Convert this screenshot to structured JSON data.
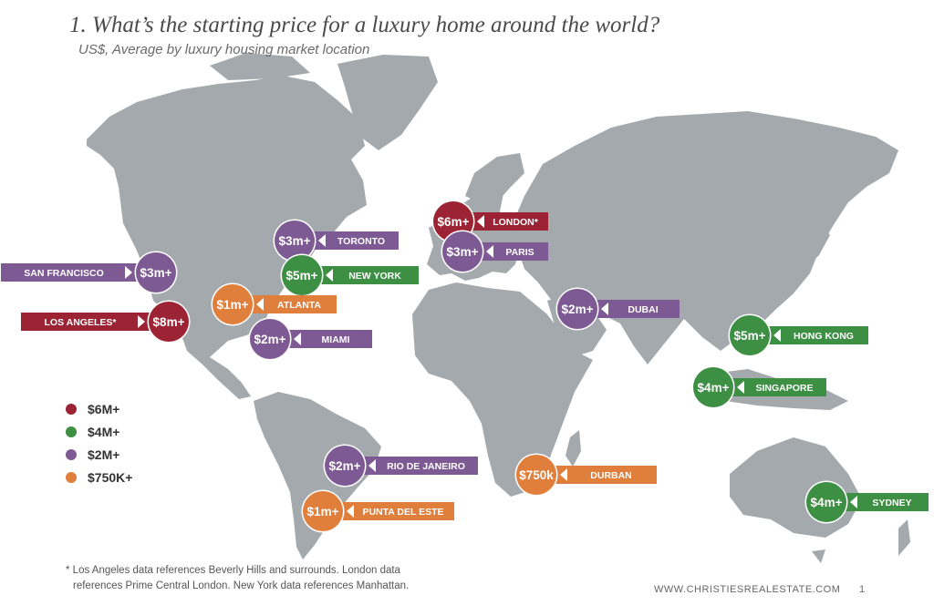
{
  "title": "1. What’s the starting price for a luxury home around the world?",
  "subtitle": "US$, Average by luxury housing market location",
  "colors": {
    "tier6": "#9c2333",
    "tier4": "#3d8f43",
    "tier2": "#7d5a93",
    "tier750": "#e07e3c",
    "land": "#a3a9ac"
  },
  "legend": [
    {
      "label": "$6M+",
      "tier": "tier6"
    },
    {
      "label": "$4M+",
      "tier": "tier4"
    },
    {
      "label": "$2M+",
      "tier": "tier2"
    },
    {
      "label": "$750K+",
      "tier": "tier750"
    }
  ],
  "markets": [
    {
      "id": "london",
      "city": "LONDON*",
      "price": "$6m+",
      "tier": "tier6"
    },
    {
      "id": "paris",
      "city": "PARIS",
      "price": "$3m+",
      "tier": "tier2"
    },
    {
      "id": "toronto",
      "city": "TORONTO",
      "price": "$3m+",
      "tier": "tier2"
    },
    {
      "id": "new-york",
      "city": "NEW YORK",
      "price": "$5m+",
      "tier": "tier4"
    },
    {
      "id": "san-francisco",
      "city": "SAN FRANCISCO",
      "price": "$3m+",
      "tier": "tier2"
    },
    {
      "id": "atlanta",
      "city": "ATLANTA",
      "price": "$1m+",
      "tier": "tier750"
    },
    {
      "id": "los-angeles",
      "city": "LOS ANGELES*",
      "price": "$8m+",
      "tier": "tier6"
    },
    {
      "id": "miami",
      "city": "MIAMI",
      "price": "$2m+",
      "tier": "tier2"
    },
    {
      "id": "dubai",
      "city": "DUBAI",
      "price": "$2m+",
      "tier": "tier2"
    },
    {
      "id": "hong-kong",
      "city": "HONG KONG",
      "price": "$5m+",
      "tier": "tier4"
    },
    {
      "id": "singapore",
      "city": "SINGAPORE",
      "price": "$4m+",
      "tier": "tier4"
    },
    {
      "id": "rio-de-janeiro",
      "city": "RIO DE JANEIRO",
      "price": "$2m+",
      "tier": "tier2"
    },
    {
      "id": "durban",
      "city": "DURBAN",
      "price": "$750k",
      "tier": "tier750"
    },
    {
      "id": "punta-del-este",
      "city": "PUNTA DEL ESTE",
      "price": "$1m+",
      "tier": "tier750"
    },
    {
      "id": "sydney",
      "city": "SYDNEY",
      "price": "$4m+",
      "tier": "tier4"
    }
  ],
  "footnote": {
    "line1": "* Los Angeles data references Beverly Hills and surrounds. London data",
    "line2": "references Prime Central London. New York data references Manhattan."
  },
  "website": "WWW.CHRISTIESREALESTATE.COM",
  "page_number": "1"
}
